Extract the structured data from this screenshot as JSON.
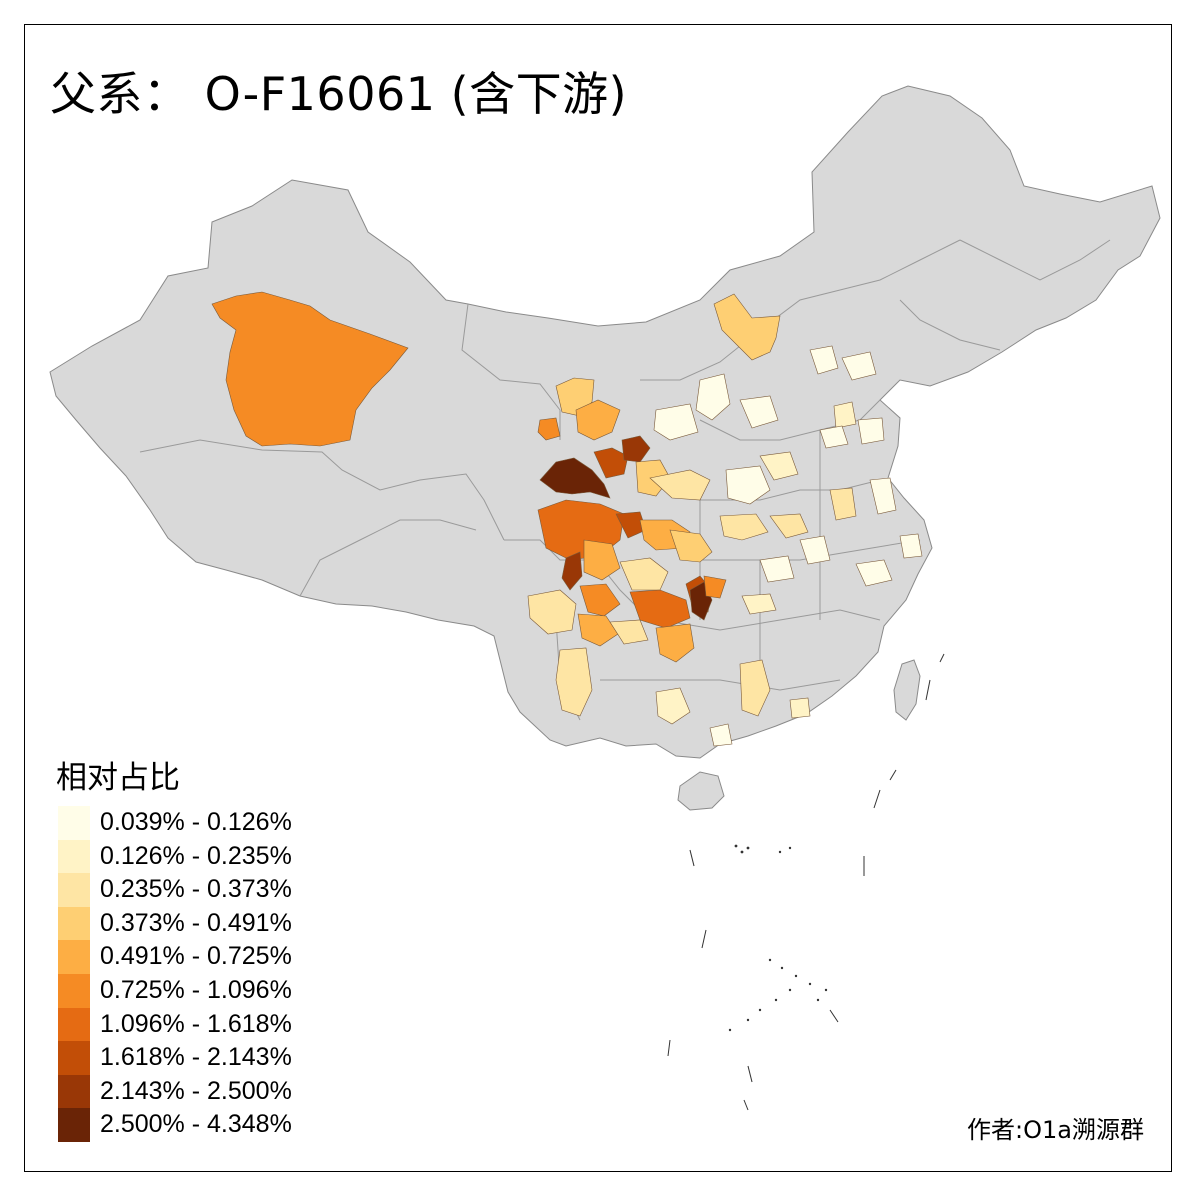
{
  "title": "父系： O-F16061 (含下游)",
  "legend": {
    "title": "相对占比",
    "bins": [
      {
        "label": "0.039% - 0.126%",
        "color": "#fffde8"
      },
      {
        "label": "0.126% - 0.235%",
        "color": "#fff3c6"
      },
      {
        "label": "0.235% - 0.373%",
        "color": "#fee5a4"
      },
      {
        "label": "0.373% - 0.491%",
        "color": "#fecf73"
      },
      {
        "label": "0.491% - 0.725%",
        "color": "#fdae44"
      },
      {
        "label": "0.725% - 1.096%",
        "color": "#f58b24"
      },
      {
        "label": "1.096% - 1.618%",
        "color": "#e56b13"
      },
      {
        "label": "1.618% - 2.143%",
        "color": "#c24e07"
      },
      {
        "label": "2.143% - 2.500%",
        "color": "#993706"
      },
      {
        "label": "2.500% - 4.348%",
        "color": "#6a2406"
      }
    ]
  },
  "credit": "作者:O1a溯源群",
  "colors": {
    "land": "#d9d9d9",
    "border": "#8a8a8a",
    "frame": "#000000"
  }
}
